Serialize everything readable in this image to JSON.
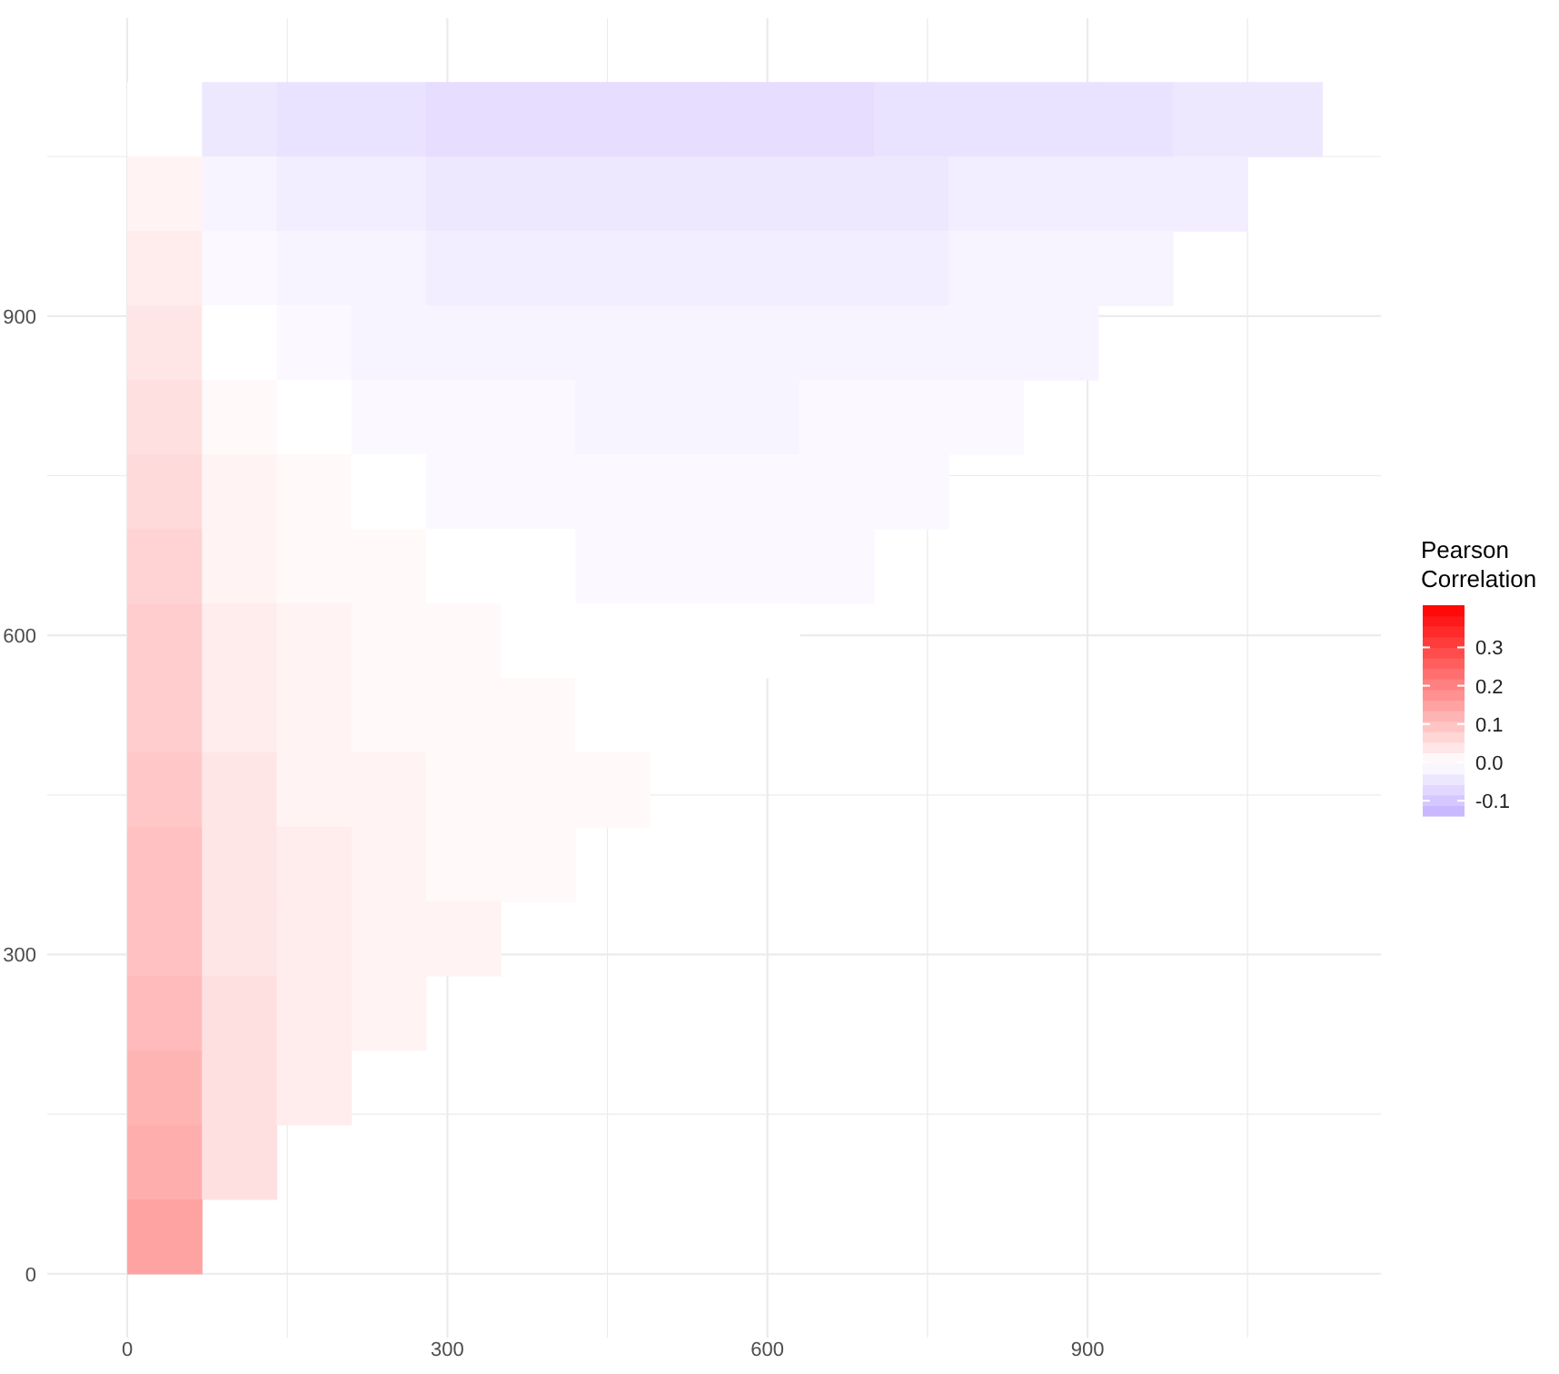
{
  "chart_data": {
    "type": "heatmap",
    "legend_title": "Pearson\nCorrelation",
    "x": [
      35,
      105,
      175,
      245,
      315,
      385,
      455,
      525,
      595,
      665,
      735,
      805,
      875,
      945,
      1015,
      1085
    ],
    "y": [
      1085,
      1015,
      945,
      875,
      805,
      735,
      665,
      595,
      525,
      455,
      385,
      315,
      245,
      175,
      105,
      35
    ],
    "cells": [
      [
        0.0,
        -0.04,
        -0.05,
        -0.05,
        -0.06,
        -0.06,
        -0.06,
        -0.06,
        -0.06,
        -0.06,
        -0.05,
        -0.05,
        -0.05,
        -0.05,
        -0.04,
        -0.04
      ],
      [
        0.02,
        -0.02,
        -0.03,
        -0.03,
        -0.04,
        -0.04,
        -0.04,
        -0.04,
        -0.04,
        -0.04,
        -0.04,
        -0.03,
        -0.03,
        -0.03,
        -0.03,
        null
      ],
      [
        0.03,
        -0.01,
        -0.02,
        -0.02,
        -0.03,
        -0.03,
        -0.03,
        -0.03,
        -0.03,
        -0.03,
        -0.03,
        -0.02,
        -0.02,
        -0.02,
        null,
        null
      ],
      [
        0.04,
        0.0,
        -0.01,
        -0.02,
        -0.02,
        -0.02,
        -0.02,
        -0.02,
        -0.02,
        -0.02,
        -0.02,
        -0.02,
        -0.02,
        null,
        null,
        null
      ],
      [
        0.05,
        0.01,
        0.0,
        -0.01,
        -0.01,
        -0.01,
        -0.02,
        -0.02,
        -0.02,
        -0.01,
        -0.01,
        -0.01,
        null,
        null,
        null,
        null
      ],
      [
        0.06,
        0.02,
        0.01,
        0.0,
        -0.01,
        -0.01,
        -0.01,
        -0.01,
        -0.01,
        -0.01,
        -0.01,
        null,
        null,
        null,
        null,
        null
      ],
      [
        0.07,
        0.02,
        0.01,
        0.01,
        0.0,
        0.0,
        -0.01,
        -0.01,
        -0.01,
        -0.01,
        null,
        null,
        null,
        null,
        null,
        null
      ],
      [
        0.08,
        0.03,
        0.02,
        0.01,
        0.01,
        0.0,
        0.0,
        0.0,
        0.0,
        null,
        null,
        null,
        null,
        null,
        null,
        null
      ],
      [
        0.08,
        0.03,
        0.02,
        0.01,
        0.01,
        0.01,
        0.0,
        0.0,
        null,
        null,
        null,
        null,
        null,
        null,
        null,
        null
      ],
      [
        0.09,
        0.04,
        0.02,
        0.02,
        0.01,
        0.01,
        0.01,
        null,
        null,
        null,
        null,
        null,
        null,
        null,
        null,
        null
      ],
      [
        0.1,
        0.04,
        0.03,
        0.02,
        0.01,
        0.01,
        null,
        null,
        null,
        null,
        null,
        null,
        null,
        null,
        null,
        null
      ],
      [
        0.1,
        0.04,
        0.03,
        0.02,
        0.02,
        null,
        null,
        null,
        null,
        null,
        null,
        null,
        null,
        null,
        null,
        null
      ],
      [
        0.11,
        0.05,
        0.03,
        0.02,
        null,
        null,
        null,
        null,
        null,
        null,
        null,
        null,
        null,
        null,
        null,
        null
      ],
      [
        0.12,
        0.05,
        0.03,
        null,
        null,
        null,
        null,
        null,
        null,
        null,
        null,
        null,
        null,
        null,
        null,
        null
      ],
      [
        0.13,
        0.05,
        null,
        null,
        null,
        null,
        null,
        null,
        null,
        null,
        null,
        null,
        null,
        null,
        null,
        null
      ],
      [
        0.15,
        null,
        null,
        null,
        null,
        null,
        null,
        null,
        null,
        null,
        null,
        null,
        null,
        null,
        null,
        null
      ]
    ],
    "xlim": [
      -75,
      1175
    ],
    "ylim": [
      -60,
      1180
    ],
    "xticks": [
      0,
      {
        "value": 150,
        "label": null
      },
      300,
      {
        "value": 450,
        "label": null
      },
      600,
      {
        "value": 750,
        "label": null
      },
      900,
      {
        "value": 1050,
        "label": null
      }
    ],
    "yticks": [
      0,
      {
        "value": 150,
        "label": null
      },
      300,
      {
        "value": 450,
        "label": null
      },
      600,
      {
        "value": 750,
        "label": null
      },
      900,
      {
        "value": 1050,
        "label": null
      }
    ],
    "clim": [
      -0.14,
      0.41
    ],
    "cticks": [
      {
        "value": -0.1,
        "label": "-0.1"
      },
      {
        "value": 0,
        "label": "0.0"
      },
      {
        "value": 0.1,
        "label": "0.1"
      },
      {
        "value": 0.2,
        "label": "0.2"
      },
      {
        "value": 0.3,
        "label": "0.3"
      }
    ],
    "grid": true
  }
}
